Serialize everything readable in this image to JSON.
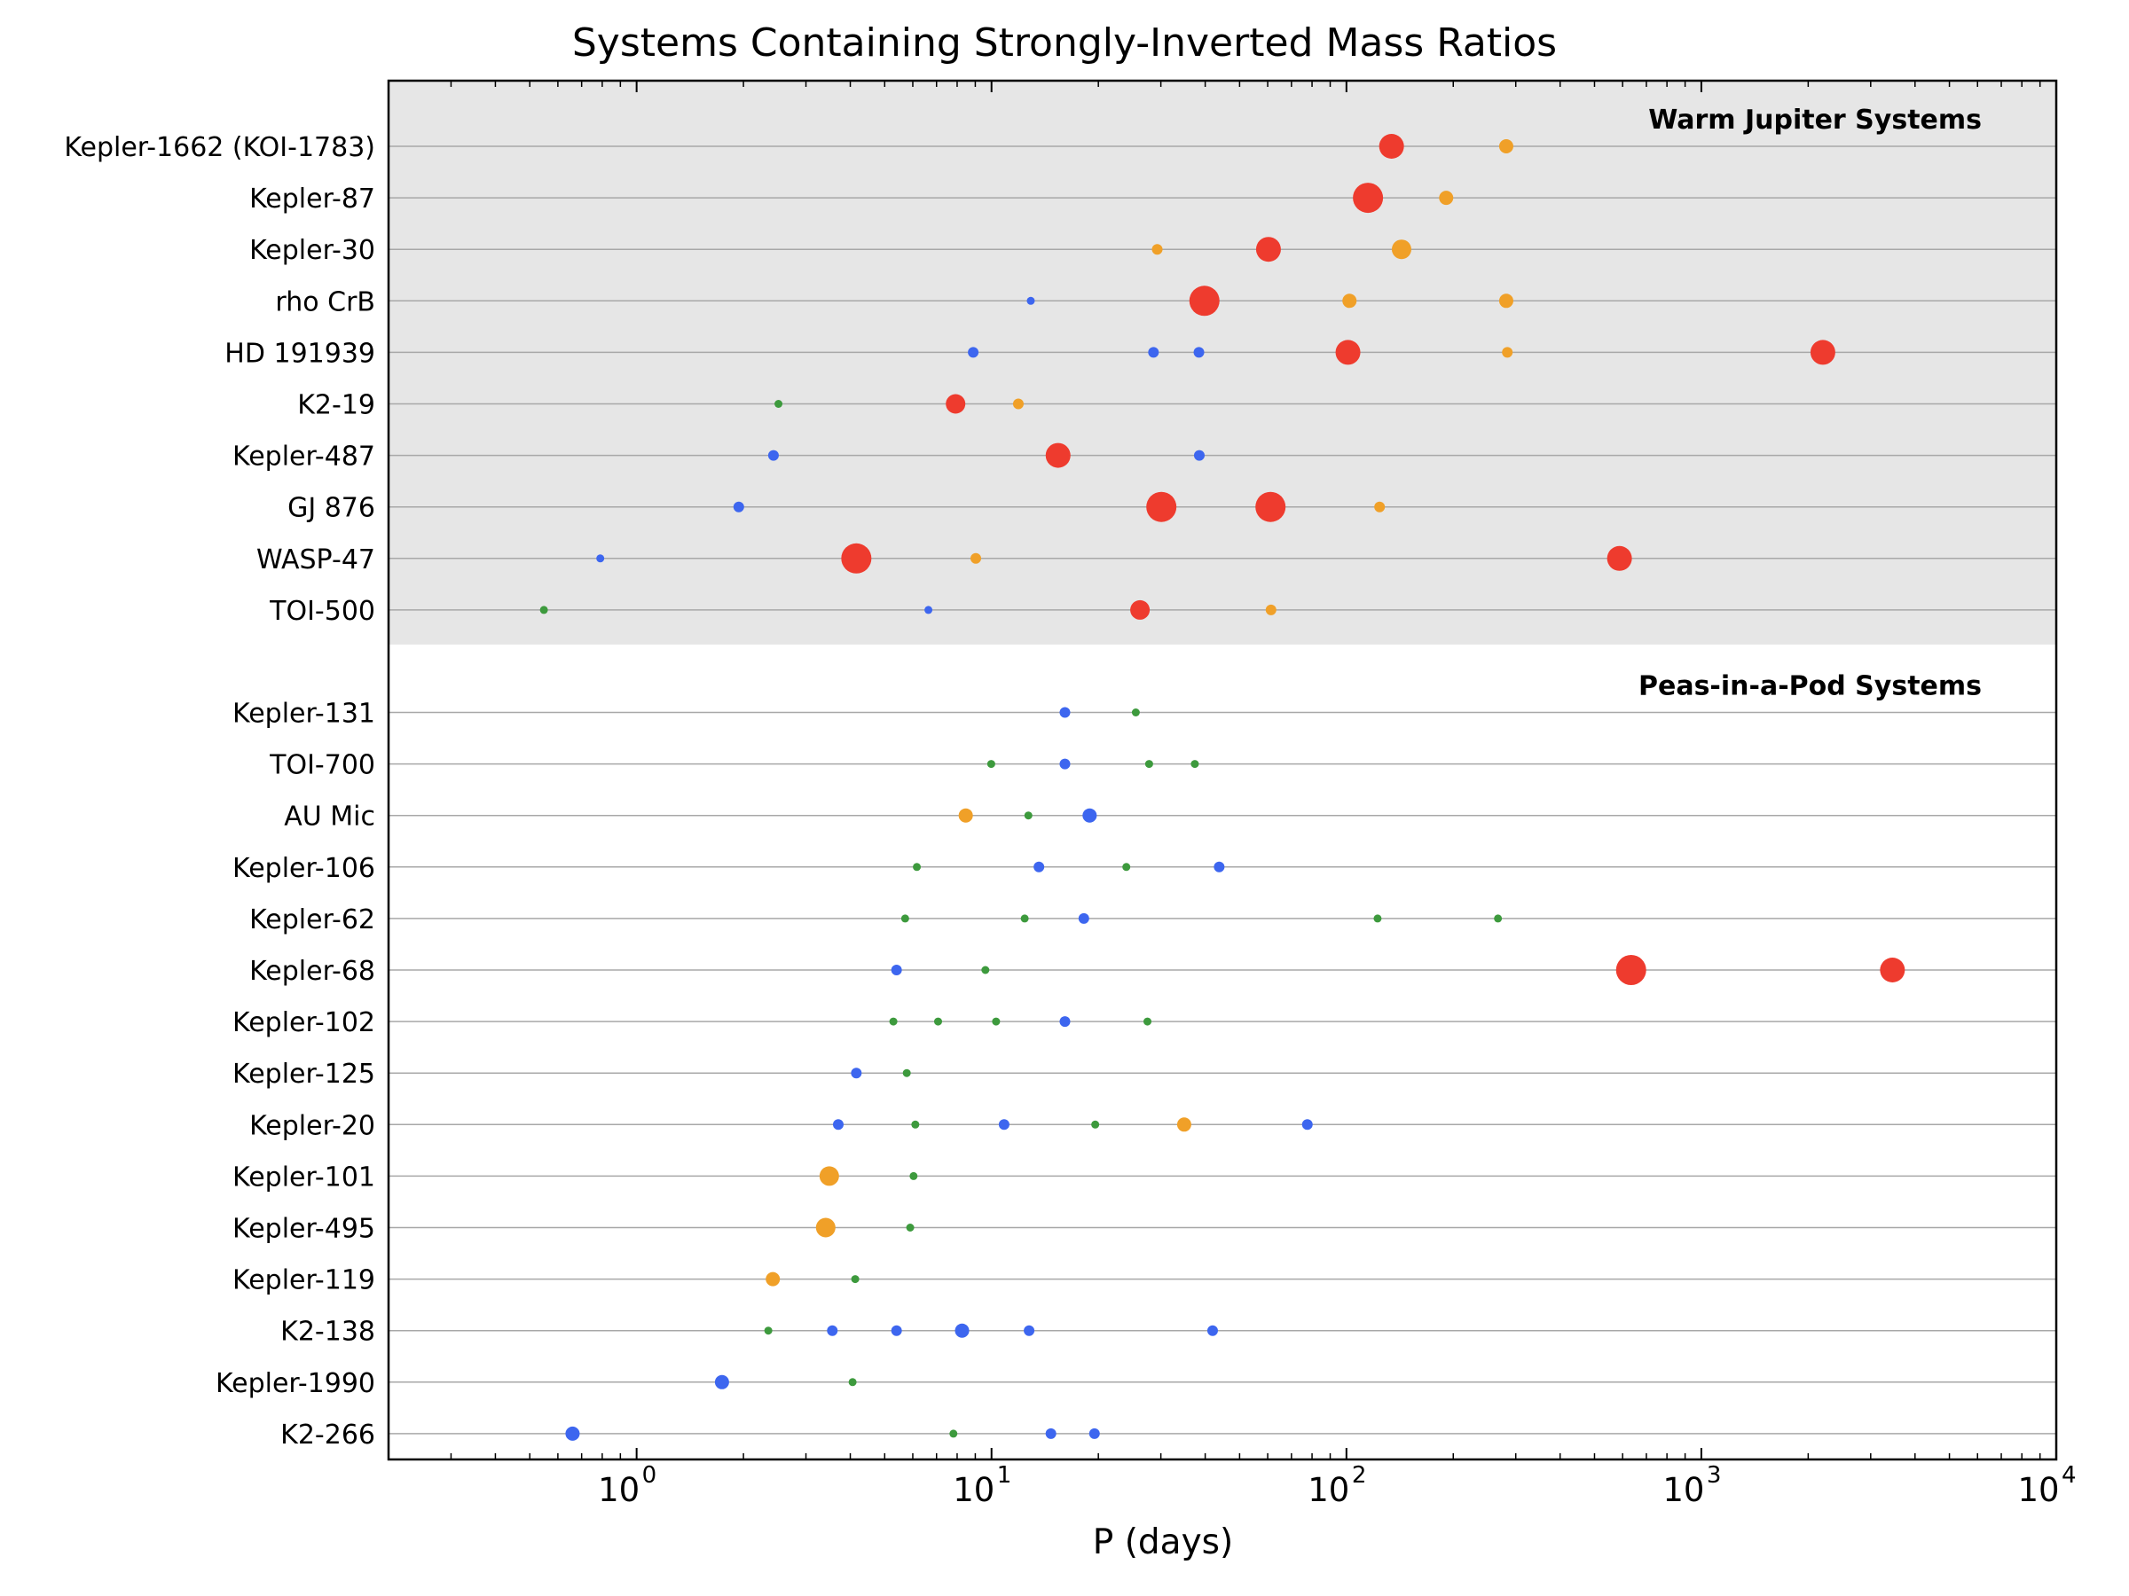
{
  "chart_data": {
    "type": "scatter",
    "title": "Systems Containing Strongly-Inverted Mass Ratios",
    "xlabel": "P (days)",
    "ylabel": "",
    "x_scale": "log",
    "xlim": [
      0.2,
      10000
    ],
    "x_ticks": [
      {
        "base": "10",
        "exp": "0",
        "value": 1
      },
      {
        "base": "10",
        "exp": "1",
        "value": 10
      },
      {
        "base": "10",
        "exp": "2",
        "value": 100
      },
      {
        "base": "10",
        "exp": "3",
        "value": 1000
      },
      {
        "base": "10",
        "exp": "4",
        "value": 10000
      }
    ],
    "grid": "horizontal lines per system",
    "colors": {
      "red": "#ee3b2e",
      "orange": "#f0a028",
      "blue": "#3d66ef",
      "green": "#3d9a3d",
      "shade": "#e6e6e6",
      "line": "#a8a8a8"
    },
    "sizes": {
      "xl": 17,
      "l": 14,
      "m": 11,
      "s": 8,
      "xs": 6,
      "xxs": 4.5
    },
    "groups": [
      {
        "label": "Warm Jupiter Systems",
        "shaded": true,
        "systems": [
          {
            "name": "Kepler-1662 (KOI-1783)",
            "planets": [
              {
                "p": 134,
                "c": "red",
                "s": "l"
              },
              {
                "p": 282,
                "c": "orange",
                "s": "s"
              }
            ]
          },
          {
            "name": "Kepler-87",
            "planets": [
              {
                "p": 115,
                "c": "red",
                "s": "xl"
              },
              {
                "p": 191,
                "c": "orange",
                "s": "s"
              }
            ]
          },
          {
            "name": "Kepler-30",
            "planets": [
              {
                "p": 29.3,
                "c": "orange",
                "s": "xs"
              },
              {
                "p": 60.3,
                "c": "red",
                "s": "l"
              },
              {
                "p": 143,
                "c": "orange",
                "s": "m"
              }
            ]
          },
          {
            "name": "rho CrB",
            "planets": [
              {
                "p": 12.9,
                "c": "blue",
                "s": "xxs"
              },
              {
                "p": 39.8,
                "c": "red",
                "s": "xl"
              },
              {
                "p": 102,
                "c": "orange",
                "s": "s"
              },
              {
                "p": 282,
                "c": "orange",
                "s": "s"
              }
            ]
          },
          {
            "name": "HD 191939",
            "planets": [
              {
                "p": 8.88,
                "c": "blue",
                "s": "xs"
              },
              {
                "p": 28.6,
                "c": "blue",
                "s": "xs"
              },
              {
                "p": 38.4,
                "c": "blue",
                "s": "xs"
              },
              {
                "p": 101,
                "c": "red",
                "s": "l"
              },
              {
                "p": 284,
                "c": "orange",
                "s": "xs"
              },
              {
                "p": 2200,
                "c": "red",
                "s": "l"
              }
            ]
          },
          {
            "name": "K2-19",
            "planets": [
              {
                "p": 2.51,
                "c": "green",
                "s": "xxs"
              },
              {
                "p": 7.92,
                "c": "red",
                "s": "m"
              },
              {
                "p": 11.9,
                "c": "orange",
                "s": "xs"
              }
            ]
          },
          {
            "name": "Kepler-487",
            "planets": [
              {
                "p": 2.43,
                "c": "blue",
                "s": "xs"
              },
              {
                "p": 15.4,
                "c": "red",
                "s": "l"
              },
              {
                "p": 38.5,
                "c": "blue",
                "s": "xs"
              }
            ]
          },
          {
            "name": "GJ 876",
            "planets": [
              {
                "p": 1.94,
                "c": "blue",
                "s": "xs"
              },
              {
                "p": 30.1,
                "c": "red",
                "s": "xl"
              },
              {
                "p": 61.1,
                "c": "red",
                "s": "xl"
              },
              {
                "p": 124,
                "c": "orange",
                "s": "xs"
              }
            ]
          },
          {
            "name": "WASP-47",
            "planets": [
              {
                "p": 0.79,
                "c": "blue",
                "s": "xxs"
              },
              {
                "p": 4.16,
                "c": "red",
                "s": "xl"
              },
              {
                "p": 9.03,
                "c": "orange",
                "s": "xs"
              },
              {
                "p": 588,
                "c": "red",
                "s": "l"
              }
            ]
          },
          {
            "name": "TOI-500",
            "planets": [
              {
                "p": 0.548,
                "c": "green",
                "s": "xxs"
              },
              {
                "p": 6.64,
                "c": "blue",
                "s": "xxs"
              },
              {
                "p": 26.2,
                "c": "red",
                "s": "m"
              },
              {
                "p": 61.3,
                "c": "orange",
                "s": "xs"
              }
            ]
          }
        ]
      },
      {
        "label": "Peas-in-a-Pod Systems",
        "shaded": false,
        "systems": [
          {
            "name": "Kepler-131",
            "planets": [
              {
                "p": 16.1,
                "c": "blue",
                "s": "xs"
              },
              {
                "p": 25.5,
                "c": "green",
                "s": "xxs"
              }
            ]
          },
          {
            "name": "TOI-700",
            "planets": [
              {
                "p": 9.98,
                "c": "green",
                "s": "xxs"
              },
              {
                "p": 16.1,
                "c": "blue",
                "s": "xs"
              },
              {
                "p": 27.8,
                "c": "green",
                "s": "xxs"
              },
              {
                "p": 37.4,
                "c": "green",
                "s": "xxs"
              }
            ]
          },
          {
            "name": "AU Mic",
            "planets": [
              {
                "p": 8.46,
                "c": "orange",
                "s": "s"
              },
              {
                "p": 12.7,
                "c": "green",
                "s": "xxs"
              },
              {
                "p": 18.9,
                "c": "blue",
                "s": "s"
              }
            ]
          },
          {
            "name": "Kepler-106",
            "planets": [
              {
                "p": 6.16,
                "c": "green",
                "s": "xxs"
              },
              {
                "p": 13.6,
                "c": "blue",
                "s": "xs"
              },
              {
                "p": 23.98,
                "c": "green",
                "s": "xxs"
              },
              {
                "p": 43.8,
                "c": "blue",
                "s": "xs"
              }
            ]
          },
          {
            "name": "Kepler-62",
            "planets": [
              {
                "p": 5.71,
                "c": "green",
                "s": "xxs"
              },
              {
                "p": 12.4,
                "c": "green",
                "s": "xxs"
              },
              {
                "p": 18.2,
                "c": "blue",
                "s": "xs"
              },
              {
                "p": 122.4,
                "c": "green",
                "s": "xxs"
              },
              {
                "p": 267.3,
                "c": "green",
                "s": "xxs"
              }
            ]
          },
          {
            "name": "Kepler-68",
            "planets": [
              {
                "p": 5.4,
                "c": "blue",
                "s": "xs"
              },
              {
                "p": 9.61,
                "c": "green",
                "s": "xxs"
              },
              {
                "p": 634,
                "c": "red",
                "s": "xl"
              },
              {
                "p": 3455,
                "c": "red",
                "s": "l"
              }
            ]
          },
          {
            "name": "Kepler-102",
            "planets": [
              {
                "p": 5.29,
                "c": "green",
                "s": "xxs"
              },
              {
                "p": 7.07,
                "c": "green",
                "s": "xxs"
              },
              {
                "p": 10.3,
                "c": "green",
                "s": "xxs"
              },
              {
                "p": 16.1,
                "c": "blue",
                "s": "xs"
              },
              {
                "p": 27.5,
                "c": "green",
                "s": "xxs"
              }
            ]
          },
          {
            "name": "Kepler-125",
            "planets": [
              {
                "p": 4.16,
                "c": "blue",
                "s": "xs"
              },
              {
                "p": 5.77,
                "c": "green",
                "s": "xxs"
              }
            ]
          },
          {
            "name": "Kepler-20",
            "planets": [
              {
                "p": 3.7,
                "c": "blue",
                "s": "xs"
              },
              {
                "p": 6.1,
                "c": "green",
                "s": "xxs"
              },
              {
                "p": 10.85,
                "c": "blue",
                "s": "xs"
              },
              {
                "p": 19.6,
                "c": "green",
                "s": "xxs"
              },
              {
                "p": 34.9,
                "c": "orange",
                "s": "s"
              },
              {
                "p": 77.6,
                "c": "blue",
                "s": "xs"
              }
            ]
          },
          {
            "name": "Kepler-101",
            "planets": [
              {
                "p": 3.49,
                "c": "orange",
                "s": "m"
              },
              {
                "p": 6.03,
                "c": "green",
                "s": "xxs"
              }
            ]
          },
          {
            "name": "Kepler-495",
            "planets": [
              {
                "p": 3.41,
                "c": "orange",
                "s": "m"
              },
              {
                "p": 5.9,
                "c": "green",
                "s": "xxs"
              }
            ]
          },
          {
            "name": "Kepler-119",
            "planets": [
              {
                "p": 2.42,
                "c": "orange",
                "s": "s"
              },
              {
                "p": 4.13,
                "c": "green",
                "s": "xxs"
              }
            ]
          },
          {
            "name": "K2-138",
            "planets": [
              {
                "p": 2.35,
                "c": "green",
                "s": "xxs"
              },
              {
                "p": 3.56,
                "c": "blue",
                "s": "xs"
              },
              {
                "p": 5.4,
                "c": "blue",
                "s": "xs"
              },
              {
                "p": 8.26,
                "c": "blue",
                "s": "s"
              },
              {
                "p": 12.76,
                "c": "blue",
                "s": "xs"
              },
              {
                "p": 41.97,
                "c": "blue",
                "s": "xs"
              }
            ]
          },
          {
            "name": "Kepler-1990",
            "planets": [
              {
                "p": 1.74,
                "c": "blue",
                "s": "s"
              },
              {
                "p": 4.06,
                "c": "green",
                "s": "xxs"
              }
            ]
          },
          {
            "name": "K2-266",
            "planets": [
              {
                "p": 0.66,
                "c": "blue",
                "s": "s"
              },
              {
                "p": 7.81,
                "c": "green",
                "s": "xxs"
              },
              {
                "p": 14.7,
                "c": "blue",
                "s": "xs"
              },
              {
                "p": 19.5,
                "c": "blue",
                "s": "xs"
              }
            ]
          }
        ]
      }
    ]
  }
}
